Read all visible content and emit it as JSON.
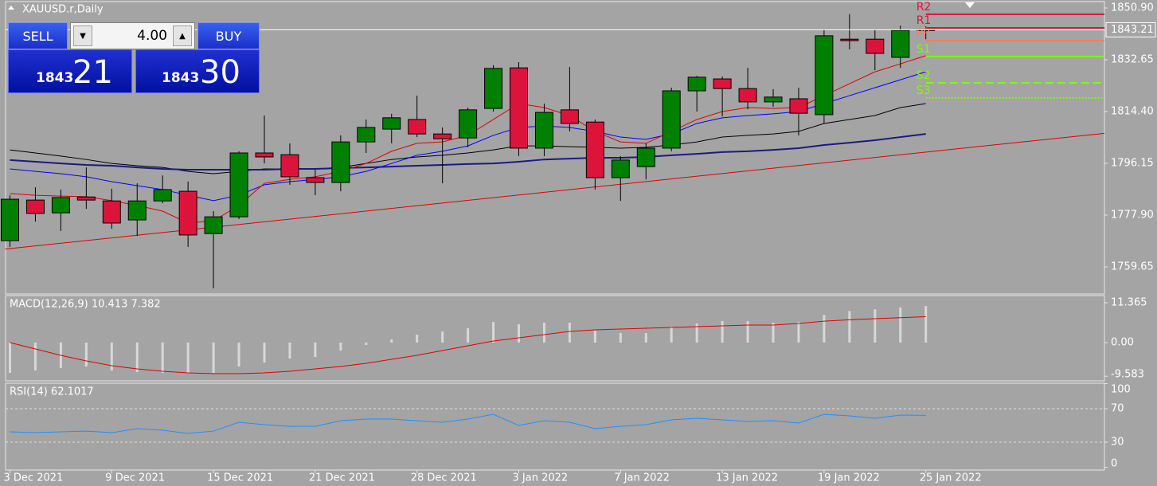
{
  "chart_data": [
    {
      "type": "candlestick",
      "title": "XAUUSD.r,Daily",
      "categories": [
        "3 Dec 2021",
        null,
        null,
        null,
        "9 Dec 2021",
        null,
        null,
        null,
        "15 Dec 2021",
        null,
        null,
        null,
        "21 Dec 2021",
        null,
        null,
        null,
        "28 Dec 2021",
        null,
        null,
        null,
        "3 Jan 2022",
        null,
        null,
        null,
        "7 Jan 2022",
        null,
        null,
        null,
        "13 Jan 2022",
        null,
        null,
        null,
        "19 Jan 2022",
        null,
        null,
        null,
        "25 Jan 2022"
      ],
      "open": [
        1768.9,
        1783.2,
        1778.7,
        1784.3,
        1782.9,
        1776.2,
        1782.9,
        1786.3,
        1771.4,
        1777.3,
        1799.8,
        1799.2,
        1791.1,
        1789.4,
        1803.7,
        1808.2,
        1811.6,
        1806.5,
        1805.1,
        1815.5,
        1829.8,
        1801.5,
        1815.0,
        1810.7,
        1791.1,
        1795.0,
        1801.5,
        1821.7,
        1825.9,
        1822.5,
        1817.8,
        1818.9,
        1813.3,
        1839.9,
        1839.9,
        1833.5,
        1843.0
      ],
      "high": [
        1784.9,
        1787.7,
        1786.9,
        1794.7,
        1787.2,
        1789.1,
        1791.9,
        1789.7,
        1779.3,
        1800.4,
        1813.0,
        1803.2,
        1793.9,
        1806.0,
        1811.6,
        1813.6,
        1820.0,
        1808.8,
        1815.8,
        1830.7,
        1831.8,
        1817.2,
        1830.1,
        1811.6,
        1798.7,
        1803.2,
        1822.8,
        1827.0,
        1826.8,
        1829.8,
        1822.3,
        1822.8,
        1843.3,
        1848.7,
        1843.3,
        1844.7,
        1844.4
      ],
      "low": [
        1766.7,
        1775.6,
        1772.3,
        1780.1,
        1773.1,
        1770.6,
        1782.1,
        1766.7,
        1752.1,
        1776.5,
        1796.1,
        1788.6,
        1784.9,
        1786.3,
        1799.8,
        1803.2,
        1805.4,
        1789.1,
        1801.8,
        1814.4,
        1798.7,
        1798.7,
        1807.4,
        1786.9,
        1782.9,
        1790.5,
        1800.4,
        1814.4,
        1812.7,
        1815.2,
        1816.1,
        1806.0,
        1810.2,
        1836.3,
        1829.0,
        1829.8,
        1839.9
      ],
      "close": [
        1783.5,
        1778.5,
        1784.1,
        1783.2,
        1775.1,
        1782.9,
        1786.9,
        1770.9,
        1777.3,
        1799.8,
        1798.4,
        1791.4,
        1789.4,
        1803.7,
        1808.8,
        1812.2,
        1806.5,
        1804.8,
        1815.0,
        1829.6,
        1801.5,
        1814.1,
        1810.2,
        1791.1,
        1797.3,
        1801.5,
        1821.7,
        1826.5,
        1822.5,
        1817.8,
        1819.5,
        1813.8,
        1841.1,
        1839.4,
        1834.9,
        1843.0,
        1843.21
      ],
      "up_color": "#008000",
      "down_color": "#dc143c",
      "ylim": [
        1750.1,
        1853.15
      ],
      "yticks": [
        {
          "value": 1850.9,
          "label": "1850.90"
        },
        1832.65,
        {
          "value": 1814.4,
          "label": "1814.40"
        },
        1796.15,
        {
          "value": 1777.9,
          "label": "1777.90"
        },
        1759.65
      ],
      "current_price": 1843.21,
      "overlays": [
        {
          "color": "#000000",
          "width": 1,
          "values": [
            1800.9,
            1799.8,
            1798.7,
            1797.5,
            1796.1,
            1795.3,
            1794.7,
            1793.3,
            1792.5,
            1793.3,
            1794.2,
            1794.2,
            1794.2,
            1794.7,
            1796.1,
            1797.5,
            1798.4,
            1799.0,
            1799.8,
            1800.9,
            1802.3,
            1802.3,
            1802.0,
            1801.8,
            1801.5,
            1801.8,
            1802.6,
            1803.7,
            1805.4,
            1806.0,
            1806.5,
            1807.4,
            1810.2,
            1811.6,
            1813.0,
            1815.8,
            1817.2
          ]
        },
        {
          "color": "#1a1a80",
          "width": 2,
          "values": [
            1797.3,
            1796.7,
            1796.1,
            1795.6,
            1795.3,
            1794.7,
            1794.2,
            1793.9,
            1793.9,
            1793.9,
            1793.9,
            1794.2,
            1794.2,
            1794.5,
            1794.7,
            1795.0,
            1795.3,
            1795.6,
            1795.9,
            1796.1,
            1796.7,
            1797.5,
            1797.8,
            1798.1,
            1798.1,
            1798.4,
            1799.0,
            1799.5,
            1800.1,
            1800.4,
            1800.9,
            1801.5,
            1802.6,
            1803.4,
            1804.3,
            1805.4,
            1806.5
          ]
        },
        {
          "color": "#0000ff",
          "width": 1,
          "values": [
            1794.2,
            1793.3,
            1792.5,
            1791.4,
            1789.7,
            1788.3,
            1786.9,
            1784.9,
            1783.0,
            1784.9,
            1788.6,
            1789.7,
            1790.5,
            1791.4,
            1793.3,
            1796.1,
            1799.0,
            1800.4,
            1802.3,
            1806.0,
            1808.8,
            1809.3,
            1808.8,
            1807.4,
            1805.4,
            1804.6,
            1806.5,
            1810.2,
            1812.2,
            1813.0,
            1813.6,
            1814.4,
            1817.2,
            1820.0,
            1822.8,
            1825.6,
            1828.4
          ]
        },
        {
          "color": "#e00000",
          "width": 1,
          "values": [
            1785.5,
            1784.9,
            1784.6,
            1784.4,
            1783.0,
            1781.3,
            1779.3,
            1775.1,
            1775.9,
            1781.3,
            1789.1,
            1790.5,
            1791.4,
            1793.3,
            1796.1,
            1800.4,
            1803.2,
            1803.7,
            1806.0,
            1811.6,
            1817.2,
            1815.8,
            1813.0,
            1807.4,
            1803.7,
            1803.2,
            1807.4,
            1811.6,
            1814.4,
            1815.8,
            1815.5,
            1815.8,
            1820.0,
            1824.2,
            1828.4,
            1831.2,
            1834.1
          ]
        }
      ],
      "trendline": {
        "color": "#e00000",
        "start": 1766.1,
        "end": 1800.1
      },
      "pivots": [
        {
          "label": "R2",
          "value": 1848.7,
          "color": "#dc143c",
          "style": "solid"
        },
        {
          "label": "R1",
          "value": 1843.9,
          "color": "#dc143c",
          "style": "solid"
        },
        {
          "label": "PP",
          "value": 1839.4,
          "color": "#f08060",
          "style": "solid"
        },
        {
          "label": "S1",
          "value": 1833.8,
          "color": "#7cfc00",
          "style": "solid"
        },
        {
          "label": "S2",
          "value": 1824.5,
          "color": "#7cfc00",
          "style": "dashed"
        },
        {
          "label": "S3",
          "value": 1819.2,
          "color": "#7cfc00",
          "style": "dotted"
        }
      ]
    },
    {
      "type": "bar",
      "title": "MACD(12,26,9) 10.413 7.382",
      "values": [
        -8.63,
        -7.95,
        -7.26,
        -6.81,
        -7.95,
        -8.4,
        -8.63,
        -8.63,
        -8.63,
        -6.81,
        -5.68,
        -4.54,
        -4.09,
        -2.27,
        -0.68,
        0.91,
        2.27,
        3.18,
        4.09,
        5.9,
        5.22,
        5.68,
        5.68,
        3.41,
        2.72,
        2.72,
        4.54,
        5.45,
        6.13,
        6.13,
        5.68,
        5.9,
        7.9,
        9.0,
        9.5,
        10.0,
        10.413
      ],
      "color": "#d8d8d8",
      "signal": {
        "color": "#e00000",
        "values": [
          0,
          -1.82,
          -3.63,
          -5.22,
          -6.58,
          -7.49,
          -8.17,
          -8.63,
          -8.85,
          -8.85,
          -8.63,
          -8.17,
          -7.49,
          -6.81,
          -5.9,
          -4.77,
          -3.63,
          -2.27,
          -0.91,
          0.45,
          1.36,
          2.27,
          3.18,
          3.63,
          3.86,
          4.09,
          4.31,
          4.54,
          4.77,
          4.99,
          4.99,
          5.45,
          6.1,
          6.5,
          6.8,
          7.1,
          7.382
        ]
      },
      "ylim": [
        -10.9,
        13.4
      ],
      "yticks": [
        11.365,
        {
          "value": 0,
          "label": "0.00"
        },
        -9.583
      ]
    },
    {
      "type": "line",
      "title": "RSI(14) 62.1017",
      "values": [
        42.4,
        41.4,
        42.4,
        43.3,
        41.4,
        46.2,
        44.3,
        40.5,
        43.3,
        53.8,
        51.0,
        49.0,
        49.0,
        55.7,
        57.6,
        57.6,
        55.7,
        53.8,
        57.6,
        63.3,
        50.0,
        55.7,
        53.8,
        46.2,
        49.0,
        51.0,
        56.7,
        58.6,
        56.7,
        54.8,
        55.7,
        52.9,
        63.3,
        61.4,
        58.6,
        62.4,
        62.1017
      ],
      "color": "#1e90ff",
      "ylim": [
        -3.3,
        100.5
      ],
      "yticks": [
        100,
        70,
        30,
        0
      ],
      "levels": [
        70,
        30
      ]
    }
  ],
  "trade_panel": {
    "sell": "SELL",
    "buy": "BUY",
    "lot": "4.00",
    "sell_price_big": "1843",
    "sell_price_small": "21",
    "buy_price_big": "1843",
    "buy_price_small": "30"
  }
}
